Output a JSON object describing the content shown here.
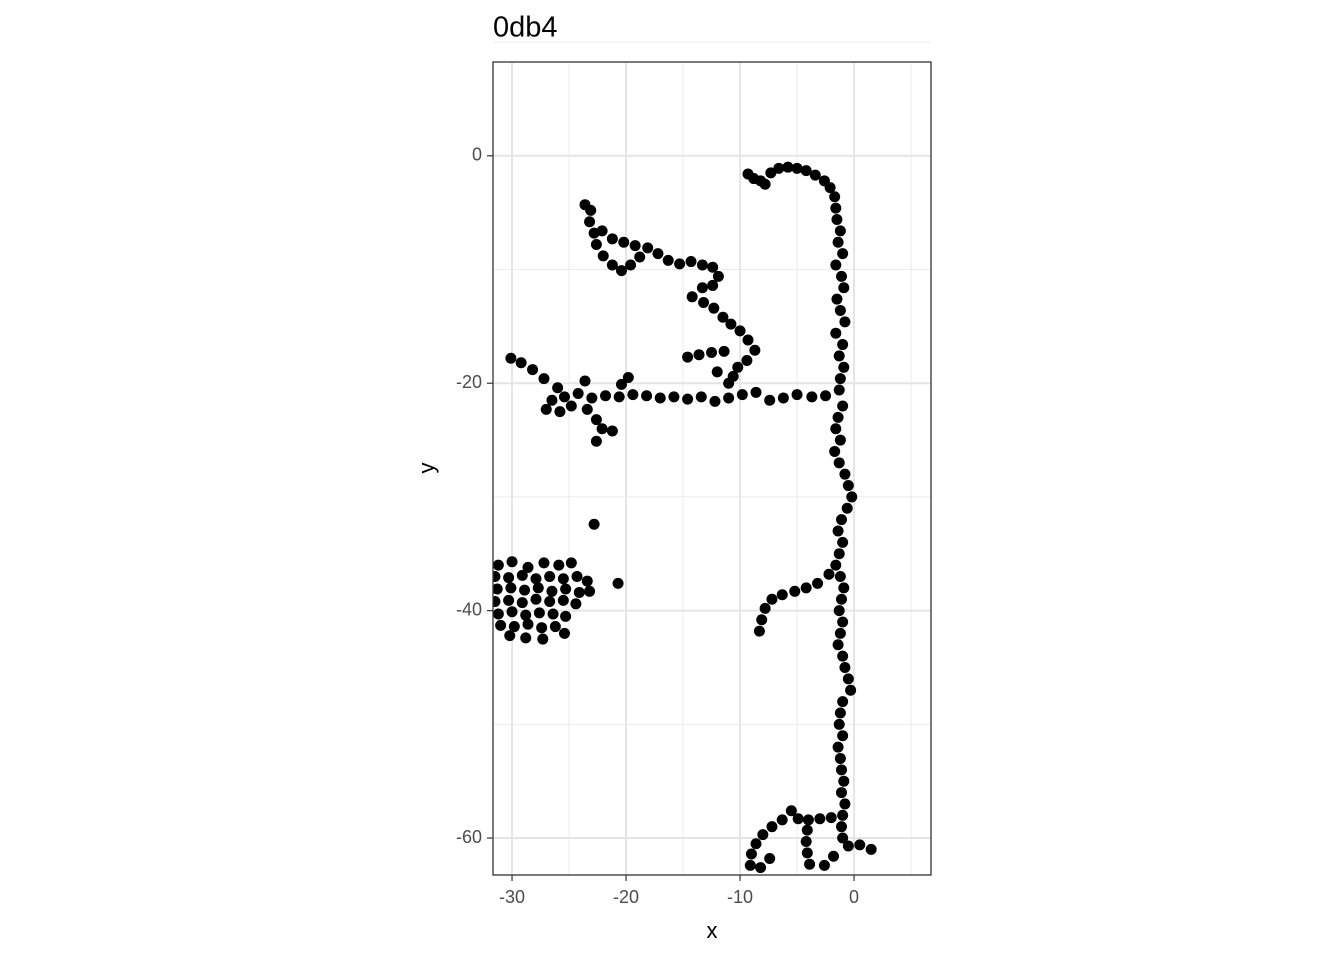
{
  "chart_data": {
    "type": "scatter",
    "title": "0db4",
    "x_label": "x",
    "y_label": "y",
    "color": "#000000",
    "xlim": [
      -31.67,
      6.75
    ],
    "ylim": [
      -63.25,
      8.25
    ],
    "xticks": [
      -30,
      -20,
      -10,
      0
    ],
    "yticks": [
      0,
      -20,
      -40,
      -60
    ],
    "x_minor_grid": [
      -25,
      -15,
      -5,
      5
    ],
    "y_minor_grid": [
      10,
      -10,
      -30,
      -50
    ],
    "grid": true,
    "x": [
      -9.3,
      -8.8,
      -8.2,
      -7.8,
      -7.3,
      -6.6,
      -5.8,
      -5.0,
      -4.2,
      -3.4,
      -2.6,
      -2.1,
      -1.7,
      -1.6,
      -1.5,
      -1.2,
      -1.4,
      -1.0,
      -1.6,
      -1.1,
      -0.9,
      -1.5,
      -1.2,
      -0.8,
      -1.6,
      -1.0,
      -1.3,
      -0.9,
      -1.2,
      -1.3,
      -2.5,
      -3.7,
      -5.0,
      -6.2,
      -7.4,
      -8.6,
      -9.8,
      -11.0,
      -12.2,
      -13.4,
      -14.6,
      -15.8,
      -17.0,
      -18.2,
      -19.4,
      -20.6,
      -21.8,
      -23.0,
      -24.2,
      -25.4,
      -26.5,
      -27.0,
      -25.8,
      -24.8,
      -23.4,
      -26.0,
      -27.2,
      -28.2,
      -29.2,
      -30.1,
      -22.6,
      -22.1,
      -21.2,
      -22.6,
      -19.8,
      -20.4,
      -23.6,
      -11.0,
      -12.0,
      -23.6,
      -23.1,
      -23.2,
      -22.8,
      -22.6,
      -22.0,
      -21.2,
      -20.4,
      -19.6,
      -18.8,
      -18.1,
      -19.2,
      -20.2,
      -21.2,
      -22.1,
      -17.2,
      -16.3,
      -15.3,
      -14.3,
      -13.3,
      -12.4,
      -11.9,
      -12.4,
      -13.3,
      -14.2,
      -13.2,
      -12.3,
      -11.5,
      -10.8,
      -10.0,
      -9.3,
      -8.7,
      -9.4,
      -10.2,
      -10.6,
      -11.4,
      -12.5,
      -13.6,
      -14.6,
      -1.0,
      -1.4,
      -1.6,
      -1.2,
      -1.7,
      -1.3,
      -0.8,
      -0.5,
      -0.2,
      -0.6,
      -1.1,
      -1.4,
      -1.0,
      -1.3,
      -1.6,
      -1.2,
      -0.9,
      -1.1,
      -1.3,
      -1.0,
      -1.2,
      -1.4,
      -1.0,
      -0.8,
      -0.5,
      -0.3,
      -1.0,
      -1.2,
      -1.3,
      -1.0,
      -1.4,
      -1.2,
      -1.1,
      -0.9,
      -1.1,
      -0.8,
      -1.0,
      -1.1,
      -1.0,
      -2.2,
      -3.2,
      -4.2,
      -5.2,
      -6.3,
      -7.2,
      -7.8,
      -8.1,
      -8.3,
      -2.0,
      -3.0,
      -4.0,
      -4.9,
      -5.5,
      -6.3,
      -7.2,
      -8.0,
      -8.6,
      -9.0,
      -9.1,
      -7.4,
      -8.2,
      -4.1,
      -4.2,
      -4.1,
      -3.9,
      -0.5,
      0.5,
      1.5,
      -1.8,
      -2.6,
      -22.8,
      -20.7,
      -31.2,
      -30.0,
      -28.6,
      -27.2,
      -25.9,
      -24.8,
      -31.5,
      -30.3,
      -29.1,
      -27.9,
      -26.7,
      -25.5,
      -24.3,
      -23.4,
      -31.3,
      -30.1,
      -28.9,
      -27.7,
      -26.5,
      -25.3,
      -24.1,
      -23.2,
      -31.5,
      -30.3,
      -29.1,
      -27.9,
      -26.7,
      -25.5,
      -24.4,
      -31.2,
      -30.0,
      -28.8,
      -27.6,
      -26.4,
      -25.3,
      -31.0,
      -29.8,
      -28.6,
      -27.4,
      -26.2,
      -25.4,
      -30.2,
      -28.8,
      -27.3
    ],
    "y": [
      -1.6,
      -2.0,
      -2.2,
      -2.5,
      -1.5,
      -1.1,
      -1.0,
      -1.1,
      -1.3,
      -1.7,
      -2.2,
      -2.8,
      -3.6,
      -4.6,
      -5.6,
      -6.6,
      -7.6,
      -8.6,
      -9.6,
      -10.6,
      -11.6,
      -12.6,
      -13.6,
      -14.6,
      -15.6,
      -16.6,
      -17.6,
      -18.6,
      -19.6,
      -20.6,
      -21.1,
      -21.2,
      -21.0,
      -21.3,
      -21.5,
      -20.8,
      -21.0,
      -21.3,
      -21.6,
      -21.2,
      -21.4,
      -21.2,
      -21.3,
      -21.1,
      -21.0,
      -21.2,
      -21.1,
      -21.3,
      -20.9,
      -21.2,
      -21.5,
      -22.3,
      -22.5,
      -22.0,
      -22.3,
      -20.4,
      -19.6,
      -18.8,
      -18.2,
      -17.8,
      -23.2,
      -24.0,
      -24.2,
      -25.1,
      -19.5,
      -20.1,
      -19.8,
      -20.0,
      -19.0,
      -4.3,
      -4.8,
      -5.8,
      -6.8,
      -7.8,
      -8.8,
      -9.6,
      -10.1,
      -9.6,
      -8.9,
      -8.1,
      -7.9,
      -7.6,
      -7.3,
      -6.6,
      -8.6,
      -9.2,
      -9.5,
      -9.3,
      -9.6,
      -9.8,
      -10.6,
      -11.4,
      -11.6,
      -12.4,
      -12.9,
      -13.4,
      -14.2,
      -14.8,
      -15.4,
      -16.2,
      -17.1,
      -18.0,
      -18.6,
      -19.4,
      -17.2,
      -17.3,
      -17.5,
      -17.7,
      -22,
      -23,
      -24,
      -25,
      -26,
      -27,
      -28,
      -29,
      -30,
      -31,
      -32,
      -33,
      -34,
      -35,
      -36,
      -37,
      -38,
      -39,
      -40,
      -41,
      -42,
      -43,
      -44,
      -45,
      -46,
      -47,
      -48,
      -49,
      -50,
      -51,
      -52,
      -53,
      -54,
      -55,
      -56,
      -57,
      -58,
      -59,
      -60,
      -36.8,
      -37.6,
      -38.0,
      -38.3,
      -38.6,
      -39.0,
      -39.8,
      -40.8,
      -41.8,
      -58.2,
      -58.3,
      -58.4,
      -58.3,
      -57.6,
      -58.4,
      -59.0,
      -59.7,
      -60.5,
      -61.4,
      -62.4,
      -61.8,
      -62.6,
      -59.3,
      -60.3,
      -61.3,
      -62.3,
      -60.7,
      -60.6,
      -61.0,
      -61.6,
      -62.4,
      -32.4,
      -37.6,
      -36.0,
      -35.7,
      -36.2,
      -35.8,
      -36.0,
      -35.8,
      -37.0,
      -37.1,
      -36.9,
      -37.2,
      -37.0,
      -37.2,
      -37.0,
      -37.4,
      -38.1,
      -38.0,
      -38.2,
      -38.0,
      -38.3,
      -38.1,
      -38.4,
      -38.3,
      -39.2,
      -39.1,
      -39.3,
      -39.0,
      -39.2,
      -39.1,
      -39.4,
      -40.3,
      -40.1,
      -40.4,
      -40.2,
      -40.3,
      -40.5,
      -41.3,
      -41.4,
      -41.2,
      -41.5,
      -41.4,
      -42.0,
      -42.2,
      -42.4,
      -42.5
    ]
  }
}
